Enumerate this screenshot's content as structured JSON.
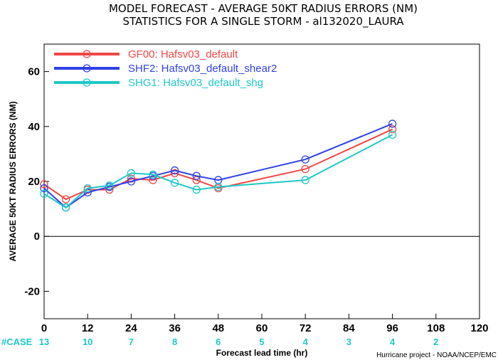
{
  "chart_data": {
    "type": "line",
    "title_line1": "MODEL FORECAST - AVERAGE 50KT RADIUS ERRORS (NM)",
    "title_line2": "STATISTICS FOR A SINGLE STORM - al132020_LAURA",
    "xlabel": "Forecast lead time (hr)",
    "ylabel": "AVERAGE 50KT RADIUS ERRORS (NM)",
    "xlim": [
      0,
      120
    ],
    "ylim": [
      -30,
      70
    ],
    "x_ticks": [
      0,
      12,
      24,
      36,
      48,
      60,
      72,
      84,
      96,
      108,
      120
    ],
    "y_ticks": [
      -20,
      0,
      20,
      40,
      60
    ],
    "zero_line": true,
    "legend_position": "top-left",
    "series": [
      {
        "name": "GF00: Hafsv03_default",
        "color": "#f04646",
        "x": [
          0,
          6,
          12,
          18,
          24,
          30,
          36,
          42,
          48,
          72,
          96
        ],
        "y": [
          19,
          13.5,
          17,
          17,
          21,
          20.5,
          23,
          20.5,
          17.5,
          24.5,
          39
        ]
      },
      {
        "name": "SHF2: Hafsv03_default_shear2",
        "color": "#3040e6",
        "x": [
          0,
          6,
          12,
          18,
          24,
          30,
          36,
          42,
          48,
          72,
          96
        ],
        "y": [
          17.5,
          10.5,
          16,
          18,
          20,
          22,
          24,
          22,
          20.5,
          28,
          41
        ]
      },
      {
        "name": "SHG1: Hafsv03_default_shg",
        "color": "#1ec8c8",
        "x": [
          0,
          6,
          12,
          18,
          24,
          30,
          36,
          42,
          48,
          72,
          96
        ],
        "y": [
          15.5,
          10.5,
          17.5,
          18.5,
          23,
          22.5,
          19.5,
          17,
          18,
          20.5,
          37
        ]
      }
    ],
    "case_label": "#CASE",
    "case_counts": [
      {
        "x": 0,
        "count": "13"
      },
      {
        "x": 12,
        "count": "10"
      },
      {
        "x": 24,
        "count": "7"
      },
      {
        "x": 36,
        "count": "8"
      },
      {
        "x": 48,
        "count": "6"
      },
      {
        "x": 60,
        "count": "5"
      },
      {
        "x": 72,
        "count": "4"
      },
      {
        "x": 84,
        "count": "3"
      },
      {
        "x": 96,
        "count": "4"
      },
      {
        "x": 108,
        "count": "2"
      }
    ],
    "credit": "Hurricane project - NOAA/NCEP/EMC"
  }
}
